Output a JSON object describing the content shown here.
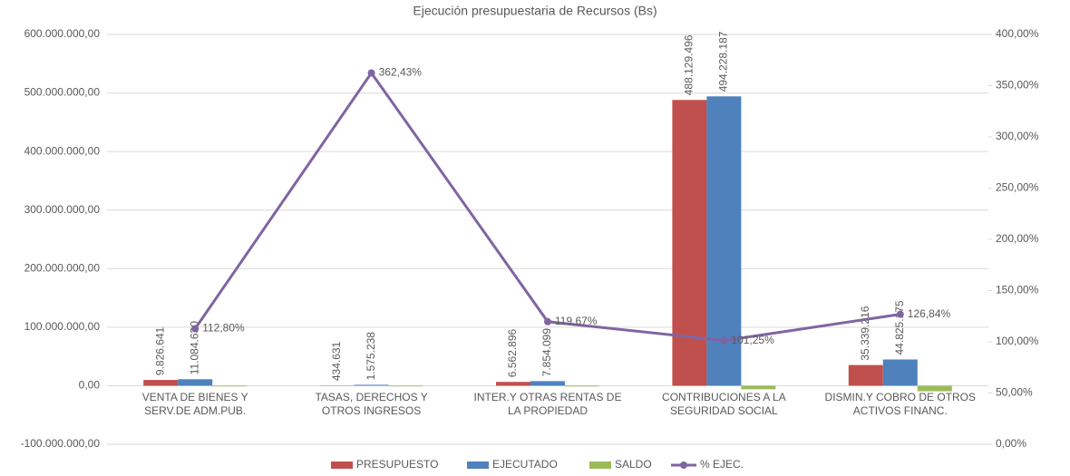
{
  "chart_data": {
    "type": "bar",
    "title": "Ejecución presupuestaria de Recursos (Bs)",
    "categories": [
      "VENTA DE BIENES Y\nSERV.DE ADM.PUB.",
      "TASAS, DERECHOS Y\nOTROS INGRESOS",
      "INTER.Y OTRAS RENTAS DE\nLA PROPIEDAD",
      "CONTRIBUCIONES A LA\nSEGURIDAD SOCIAL",
      "DISMIN.Y COBRO DE OTROS\nACTIVOS FINANC."
    ],
    "series": [
      {
        "name": "PRESUPUESTO",
        "color": "#c0504d",
        "values": [
          9826641,
          434631,
          6562896,
          488129496,
          35339216
        ],
        "value_labels": [
          "9.826.641",
          "434.631",
          "6.562.896",
          "488.129.496",
          "35.339.216"
        ]
      },
      {
        "name": "EJECUTADO",
        "color": "#4f81bd",
        "values": [
          11084630,
          1575238,
          7854099,
          494228187,
          44825175
        ],
        "value_labels": [
          "11.084.630",
          "1.575.238",
          "7.854.099",
          "494.228.187",
          "44.825.175"
        ]
      },
      {
        "name": "SALDO",
        "color": "#9bbb59",
        "values": [
          -1257989,
          -1140607,
          -1291203,
          -6098691,
          -9485959
        ]
      },
      {
        "name": "% EJEC.",
        "type": "line",
        "axis": "y2",
        "color": "#8064a2",
        "values": [
          112.8,
          362.43,
          119.67,
          101.25,
          126.84
        ],
        "value_labels": [
          "112,80%",
          "362,43%",
          "119,67%",
          "101,25%",
          "126,84%"
        ]
      }
    ],
    "ylim": [
      -100000000,
      600000000
    ],
    "yticks": [
      {
        "value": -100000000,
        "label": "-100.000.000,00"
      },
      {
        "value": 0,
        "label": "0,00"
      },
      {
        "value": 100000000,
        "label": "100.000.000,00"
      },
      {
        "value": 200000000,
        "label": "200.000.000,00"
      },
      {
        "value": 300000000,
        "label": "300.000.000,00"
      },
      {
        "value": 400000000,
        "label": "400.000.000,00"
      },
      {
        "value": 500000000,
        "label": "500.000.000,00"
      },
      {
        "value": 600000000,
        "label": "600.000.000,00"
      }
    ],
    "y2lim": [
      0,
      400
    ],
    "y2ticks": [
      {
        "value": 0,
        "label": "0,00%"
      },
      {
        "value": 50,
        "label": "50,00%"
      },
      {
        "value": 100,
        "label": "100,00%"
      },
      {
        "value": 150,
        "label": "150,00%"
      },
      {
        "value": 200,
        "label": "200,00%"
      },
      {
        "value": 250,
        "label": "250,00%"
      },
      {
        "value": 300,
        "label": "300,00%"
      },
      {
        "value": 350,
        "label": "350,00%"
      },
      {
        "value": 400,
        "label": "400,00%"
      }
    ],
    "grid": true,
    "legend": "bottom"
  }
}
